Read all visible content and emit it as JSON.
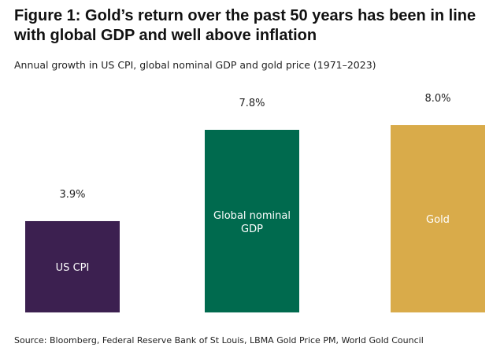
{
  "chart_data": {
    "type": "bar",
    "title": "Figure 1: Gold’s return over the past 50 years has been in line with global GDP and well above inflation",
    "subtitle": "Annual growth in US CPI, global nominal GDP and gold price (1971–2023)",
    "categories": [
      "US CPI",
      "Global nominal GDP",
      "Gold"
    ],
    "values": [
      3.9,
      7.8,
      8.0
    ],
    "value_labels": [
      "3.9%",
      "7.8%",
      "8.0%"
    ],
    "colors": [
      "#3c2050",
      "#006a4e",
      "#d9ab4a"
    ],
    "xlabel": "",
    "ylabel": "",
    "ylim": [
      0,
      8.0
    ],
    "grid": false,
    "legend": "none",
    "source": "Source: Bloomberg, Federal Reserve Bank of St Louis, LBMA Gold Price PM, World Gold Council"
  }
}
